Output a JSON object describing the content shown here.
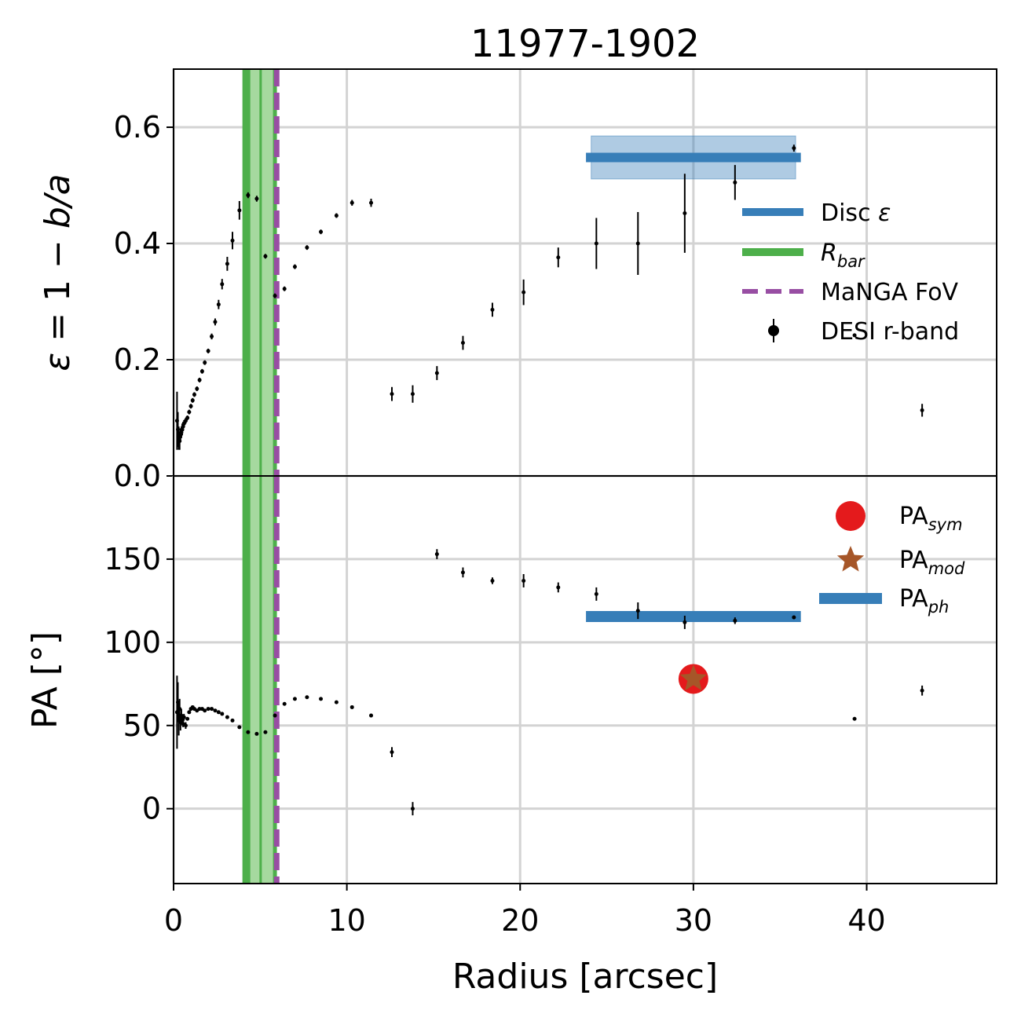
{
  "figure": {
    "title": "11977-1902",
    "xlabel": "Radius [arcsec]",
    "ylabel_top": {
      "prefix": "ε",
      "middle": " = 1 − ",
      "suffix": "b/a"
    },
    "ylabel_bottom": "PA [°]"
  },
  "colors": {
    "disc": "#377eb8",
    "bar": "#4daf4a",
    "bar_fill": "#a6d99f",
    "fov": "#984ea3",
    "points": "#000000",
    "sym": "#e41a1c",
    "mod": "#a65628",
    "grid": "#d3d3d3"
  },
  "chart_data": [
    {
      "type": "scatter",
      "panel": "top",
      "xlim": [
        0,
        47.5
      ],
      "ylim": [
        0,
        0.7
      ],
      "xticks": [
        0,
        10,
        20,
        30,
        40
      ],
      "yticks": [
        0.0,
        0.2,
        0.4,
        0.6
      ],
      "ytick_labels": [
        "0.0",
        "0.2",
        "0.4",
        "0.6"
      ],
      "grid": true,
      "legend": "right",
      "legend_entries": {
        "disc": {
          "text": "Disc ",
          "italic": "ε"
        },
        "bar": {
          "italic": "R",
          "sub": "bar"
        },
        "fov": {
          "text": "MaNGA FoV"
        },
        "desi": {
          "text": "DESI r-band"
        }
      },
      "bar_region": [
        4.2,
        5.85
      ],
      "fov_x": 5.95,
      "disc_eps": {
        "value": 0.548,
        "lo": 0.511,
        "hi": 0.585,
        "x_range": [
          23.8,
          36.2
        ]
      },
      "series": [
        {
          "name": "DESI r-band",
          "x": [
            0.2,
            0.25,
            0.3,
            0.35,
            0.4,
            0.45,
            0.5,
            0.55,
            0.6,
            0.7,
            0.8,
            0.9,
            1.0,
            1.1,
            1.2,
            1.35,
            1.5,
            1.65,
            1.8,
            2.0,
            2.2,
            2.4,
            2.6,
            2.8,
            3.1,
            3.4,
            3.8,
            4.3,
            4.8,
            5.3,
            5.85,
            6.4,
            7.0,
            7.7,
            8.5,
            9.4,
            10.3,
            11.4,
            12.6,
            13.8,
            15.2,
            16.7,
            18.4,
            20.2,
            22.2,
            24.4,
            26.8,
            29.5,
            32.4,
            35.8,
            39.3,
            43.2
          ],
          "y": [
            0.095,
            0.08,
            0.065,
            0.06,
            0.07,
            0.075,
            0.08,
            0.085,
            0.09,
            0.095,
            0.1,
            0.11,
            0.12,
            0.13,
            0.14,
            0.15,
            0.165,
            0.18,
            0.195,
            0.215,
            0.24,
            0.265,
            0.295,
            0.33,
            0.365,
            0.405,
            0.457,
            0.483,
            0.477,
            0.378,
            0.31,
            0.322,
            0.36,
            0.393,
            0.42,
            0.448,
            0.47,
            0.47,
            0.141,
            0.141,
            0.177,
            0.229,
            0.286,
            0.316,
            0.376,
            0.4,
            0.4,
            0.452,
            0.505,
            0.564,
            0.242,
            0.113
          ],
          "yerr": [
            0.05,
            0.03,
            0.02,
            0.015,
            0.012,
            0.01,
            0.01,
            0.008,
            0.006,
            0.005,
            0.004,
            0.004,
            0.004,
            0.004,
            0.004,
            0.004,
            0.004,
            0.004,
            0.004,
            0.004,
            0.005,
            0.006,
            0.008,
            0.009,
            0.012,
            0.015,
            0.016,
            0.005,
            0.005,
            0.004,
            0.004,
            0.004,
            0.004,
            0.004,
            0.004,
            0.004,
            0.005,
            0.007,
            0.012,
            0.015,
            0.012,
            0.012,
            0.012,
            0.022,
            0.017,
            0.044,
            0.054,
            0.068,
            0.03,
            0.006,
            0.003,
            0.011
          ]
        }
      ]
    },
    {
      "type": "scatter",
      "panel": "bottom",
      "xlim": [
        0,
        47.5
      ],
      "ylim": [
        -45,
        200
      ],
      "xticks": [
        0,
        10,
        20,
        30,
        40
      ],
      "yticks": [
        0,
        50,
        100,
        150
      ],
      "ytick_labels": [
        "0",
        "50",
        "100",
        "150"
      ],
      "grid": true,
      "legend": "top-right",
      "legend_entries": {
        "sym": {
          "text": "PA",
          "sub": "sym"
        },
        "mod": {
          "text": "PA",
          "sub": "mod"
        },
        "ph": {
          "text": "PA",
          "sub": "ph"
        }
      },
      "pa_ph": {
        "value": 115.5,
        "x_range": [
          23.8,
          36.2
        ]
      },
      "pa_sym": {
        "x": 30.0,
        "y": 78.0
      },
      "pa_mod": {
        "x": 30.0,
        "y": 78.0
      },
      "series": [
        {
          "name": "DESI r-band",
          "x": [
            0.2,
            0.25,
            0.3,
            0.35,
            0.4,
            0.45,
            0.5,
            0.55,
            0.6,
            0.7,
            0.8,
            0.9,
            1.0,
            1.1,
            1.2,
            1.35,
            1.5,
            1.65,
            1.8,
            2.0,
            2.2,
            2.4,
            2.6,
            2.8,
            3.1,
            3.4,
            3.8,
            4.3,
            4.8,
            5.3,
            5.85,
            6.4,
            7.0,
            7.7,
            8.5,
            9.4,
            10.3,
            11.4,
            12.6,
            13.8,
            15.2,
            16.7,
            18.4,
            20.2,
            22.2,
            24.4,
            26.8,
            29.5,
            32.4,
            35.8,
            39.3,
            43.2
          ],
          "y": [
            58,
            64,
            54,
            60,
            52,
            56,
            53,
            51,
            55,
            50,
            54,
            58,
            60,
            61,
            60,
            59,
            60,
            60,
            59,
            60,
            60,
            59,
            58,
            57,
            55,
            53,
            49,
            46,
            45,
            46,
            56,
            63,
            66,
            67,
            66,
            64,
            61,
            56,
            34,
            0,
            153,
            142,
            137,
            137,
            133,
            129,
            119,
            112,
            113,
            115,
            54,
            71
          ],
          "yerr": [
            22,
            12,
            10,
            6,
            5,
            4,
            3,
            2,
            2,
            2,
            1,
            1,
            1,
            1,
            1,
            1,
            1,
            1,
            1,
            1,
            1,
            1,
            1,
            1,
            1,
            1,
            1,
            1,
            1,
            1,
            1,
            1,
            1,
            1,
            1,
            1,
            1,
            1,
            3,
            4,
            3,
            3,
            2,
            4,
            3,
            4,
            5,
            4,
            2,
            1,
            1,
            3
          ]
        }
      ]
    }
  ]
}
